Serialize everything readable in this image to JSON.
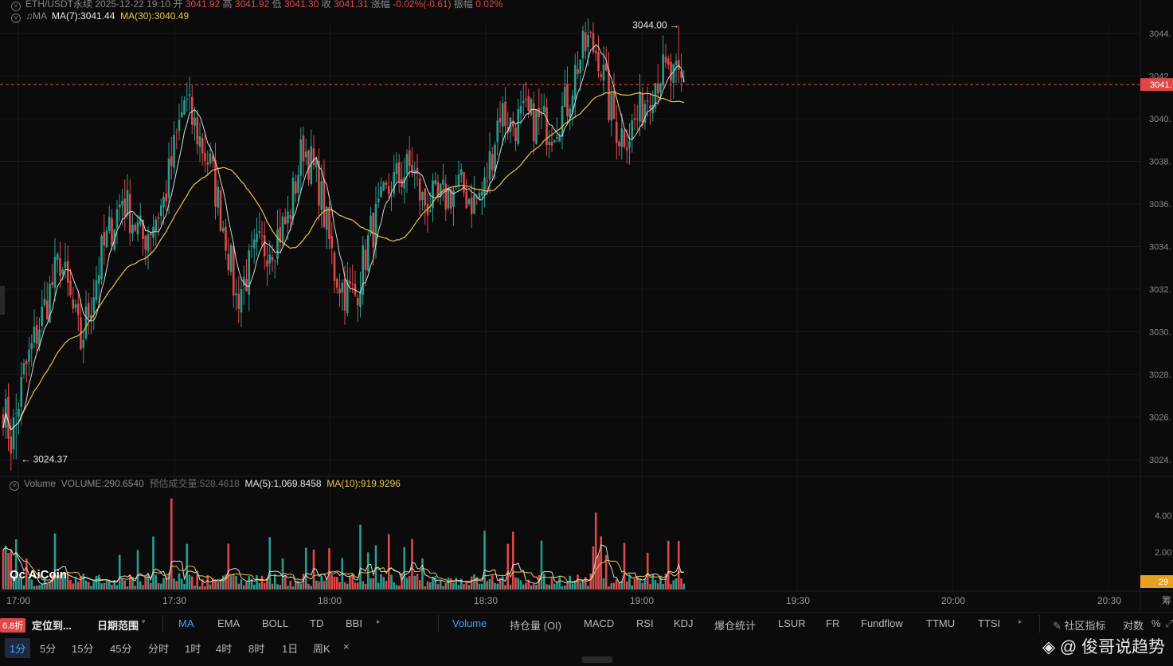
{
  "header": {
    "symbol": "ETH/USDT永续",
    "datetime": "2025-12-22 19:10",
    "open_label": "开",
    "open": "3041.92",
    "high_label": "高",
    "high": "3041.92",
    "low_label": "低",
    "low": "3041.30",
    "close_label": "收",
    "close": "3041.31",
    "change_label": "涨幅",
    "change": "-0.02%(-0.61)",
    "amp_label": "振幅",
    "amp": "0.02%"
  },
  "ma_legend": {
    "label": "MA",
    "ma7": "MA(7):3041.44",
    "ma30": "MA(30):3040.49"
  },
  "volume_legend": {
    "label": "Volume",
    "volume": "VOLUME:290.6540",
    "estimate": "预估成交量:528.4618",
    "ma5": "MA(5):1,069.8458",
    "ma10": "MA(10):919.9296"
  },
  "annotations": {
    "high_marker": "3044.00 →",
    "low_marker": "← 3024.37",
    "current_price": "3041.",
    "volume_current": "29"
  },
  "price_axis": [
    "3044.",
    "3042.",
    "3040.",
    "3038.",
    "3036.",
    "3034.",
    "3032.",
    "3030.",
    "3028.",
    "3026.",
    "3024."
  ],
  "volume_axis": [
    "4.00",
    "2.00"
  ],
  "time_axis": [
    "17:00",
    "17:30",
    "18:00",
    "18:30",
    "19:00",
    "19:30",
    "20:00",
    "20:30",
    "筹"
  ],
  "brand": "AiCoin",
  "toolbar": {
    "badge": "6.8折",
    "locate": "定位到...",
    "date_range": "日期范围",
    "main_indicators": [
      "MA",
      "EMA",
      "BOLL",
      "TD",
      "BBI"
    ],
    "sub_indicators": [
      "Volume",
      "持仓量 (OI)",
      "MACD",
      "RSI",
      "KDJ",
      "爆仓统计",
      "LSUR",
      "FR",
      "Fundflow",
      "TTMU",
      "TTSI"
    ],
    "community": "社区指标",
    "log": "对数",
    "percent": "%"
  },
  "timeframes": [
    "1分",
    "5分",
    "15分",
    "45分",
    "分时",
    "1时",
    "4时",
    "8时",
    "1日",
    "周K"
  ],
  "close_symbol": "×",
  "watermark": "@ 俊哥说趋势",
  "colors": {
    "up": "#2a9c8e",
    "down": "#e04848",
    "ma_fast": "#d8d8d8",
    "ma_slow": "#e8c547",
    "accent": "#4a9fff"
  },
  "chart_data": {
    "type": "candlestick",
    "interval": "1m",
    "price_range": [
      3023.6,
      3044.7
    ],
    "volume_range": [
      0,
      4800
    ],
    "markers": {
      "high": 3044.0,
      "low": 3024.37,
      "current": 3041.31
    },
    "close_anchors": [
      [
        0,
        3026.8
      ],
      [
        3,
        3025.2
      ],
      [
        8,
        3028.2
      ],
      [
        14,
        3030.5
      ],
      [
        22,
        3033.4
      ],
      [
        30,
        3029.6
      ],
      [
        38,
        3033.6
      ],
      [
        46,
        3036.2
      ],
      [
        54,
        3034.3
      ],
      [
        62,
        3036.0
      ],
      [
        70,
        3040.6
      ],
      [
        74,
        3039.4
      ],
      [
        80,
        3037.6
      ],
      [
        86,
        3034.5
      ],
      [
        90,
        3031.6
      ],
      [
        98,
        3033.8
      ],
      [
        104,
        3034.2
      ],
      [
        110,
        3035.2
      ],
      [
        116,
        3038.6
      ],
      [
        122,
        3036.8
      ],
      [
        128,
        3032.9
      ],
      [
        132,
        3032.0
      ],
      [
        136,
        3031.8
      ],
      [
        142,
        3034.6
      ],
      [
        150,
        3036.8
      ],
      [
        158,
        3037.6
      ],
      [
        162,
        3036.0
      ],
      [
        168,
        3036.0
      ],
      [
        176,
        3036.7
      ],
      [
        182,
        3036.0
      ],
      [
        186,
        3036.6
      ],
      [
        192,
        3040.2
      ],
      [
        196,
        3039.5
      ],
      [
        202,
        3039.8
      ],
      [
        208,
        3039.6
      ],
      [
        212,
        3039.4
      ],
      [
        218,
        3040.5
      ],
      [
        222,
        3042.3
      ],
      [
        226,
        3043.2
      ],
      [
        230,
        3042.8
      ],
      [
        234,
        3040.4
      ],
      [
        238,
        3039.1
      ],
      [
        242,
        3039.2
      ],
      [
        246,
        3040.0
      ],
      [
        250,
        3041.2
      ],
      [
        254,
        3041.9
      ],
      [
        258,
        3041.6
      ],
      [
        262,
        3041.3
      ]
    ],
    "ma7_last": 3041.44,
    "ma30_last": 3040.49,
    "volume_last": 290.654
  }
}
